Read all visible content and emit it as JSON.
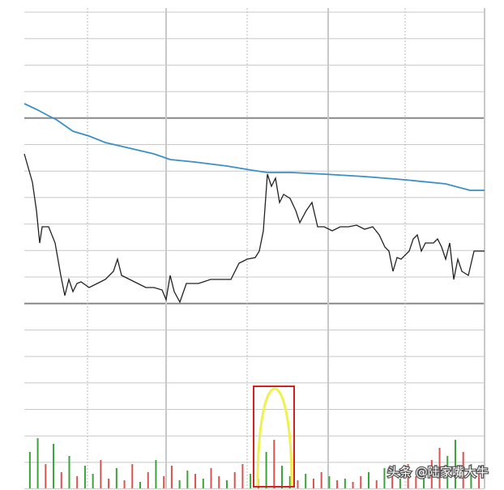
{
  "chart_data": {
    "type": "line",
    "xlim": [
      0,
      568
    ],
    "ylim": [
      0,
      360
    ],
    "series": [
      {
        "color": "#222222",
        "x": [
          0,
          10,
          15,
          19,
          22,
          30,
          38,
          45,
          50,
          55,
          60,
          65,
          70,
          80,
          90,
          100,
          110,
          115,
          120,
          130,
          140,
          150,
          160,
          170,
          175,
          180,
          185,
          192,
          200,
          215,
          230,
          245,
          255,
          265,
          275,
          285,
          290,
          295,
          300,
          305,
          310,
          315,
          320,
          328,
          335,
          340,
          348,
          355,
          362,
          370,
          380,
          390,
          400,
          410,
          420,
          430,
          438,
          445,
          450,
          455,
          460,
          465,
          475,
          480,
          485,
          490,
          495,
          505,
          510,
          515,
          520,
          525,
          530,
          535,
          540,
          548,
          555,
          568
        ],
        "values": [
          185,
          150,
          115,
          75,
          95,
          95,
          75,
          35,
          10,
          30,
          15,
          25,
          27,
          20,
          25,
          30,
          40,
          55,
          35,
          30,
          25,
          20,
          20,
          17,
          5,
          35,
          15,
          2,
          25,
          25,
          30,
          30,
          30,
          50,
          55,
          57,
          65,
          90,
          160,
          145,
          155,
          125,
          135,
          130,
          115,
          100,
          115,
          125,
          95,
          95,
          90,
          95,
          95,
          97,
          92,
          95,
          85,
          70,
          65,
          40,
          57,
          55,
          65,
          80,
          85,
          65,
          75,
          75,
          80,
          70,
          55,
          75,
          30,
          55,
          40,
          35,
          65,
          65
        ]
      },
      {
        "color": "#3a8fc8",
        "x": [
          0,
          15,
          30,
          40,
          50,
          60,
          80,
          100,
          130,
          160,
          180,
          210,
          250,
          280,
          300,
          330,
          370,
          420,
          470,
          520,
          550,
          568
        ],
        "values": [
          247,
          240,
          232,
          227,
          220,
          213,
          207,
          199,
          192,
          185,
          178,
          175,
          170,
          165,
          162,
          162,
          160,
          157,
          153,
          148,
          140,
          140
        ]
      }
    ],
    "volume": {
      "ylim": [
        0,
        228
      ],
      "values": [
        45,
        62,
        30,
        55,
        20,
        40,
        15,
        28,
        18,
        35,
        12,
        25,
        10,
        30,
        8,
        20,
        35,
        15,
        28,
        10,
        22,
        18,
        12,
        25,
        15,
        10,
        20,
        30,
        18,
        12,
        45,
        60,
        28,
        15,
        10,
        18,
        12,
        20,
        15,
        10,
        12,
        8,
        15,
        20,
        10,
        25,
        18,
        12,
        30,
        15,
        22,
        35,
        50,
        40,
        60,
        45,
        30,
        20
      ],
      "colors": [
        "#3aa33a",
        "#3aa33a",
        "#d9534f",
        "#3aa33a",
        "#d9534f",
        "#3aa33a",
        "#d9534f",
        "#3aa33a",
        "#3aa33a",
        "#d9534f",
        "#d9534f",
        "#3aa33a",
        "#d9534f",
        "#d9534f",
        "#3aa33a",
        "#d9534f",
        "#3aa33a",
        "#d9534f",
        "#d9534f",
        "#3aa33a",
        "#3aa33a",
        "#d9534f",
        "#3aa33a",
        "#d9534f",
        "#d9534f",
        "#3aa33a",
        "#d9534f",
        "#d9534f",
        "#3aa33a",
        "#d9534f",
        "#3aa33a",
        "#d9534f",
        "#3aa33a",
        "#3aa33a",
        "#d9534f",
        "#3aa33a",
        "#d9534f",
        "#d9534f",
        "#3aa33a",
        "#d9534f",
        "#3aa33a",
        "#d9534f",
        "#d9534f",
        "#3aa33a",
        "#d9534f",
        "#3aa33a",
        "#d9534f",
        "#3aa33a",
        "#d9534f",
        "#d9534f",
        "#3aa33a",
        "#d9534f",
        "#d9534f",
        "#3aa33a",
        "#3aa33a",
        "#d9534f",
        "#3aa33a",
        "#d9534f"
      ]
    },
    "watermark": "头条 @陆家嘴大牛"
  }
}
